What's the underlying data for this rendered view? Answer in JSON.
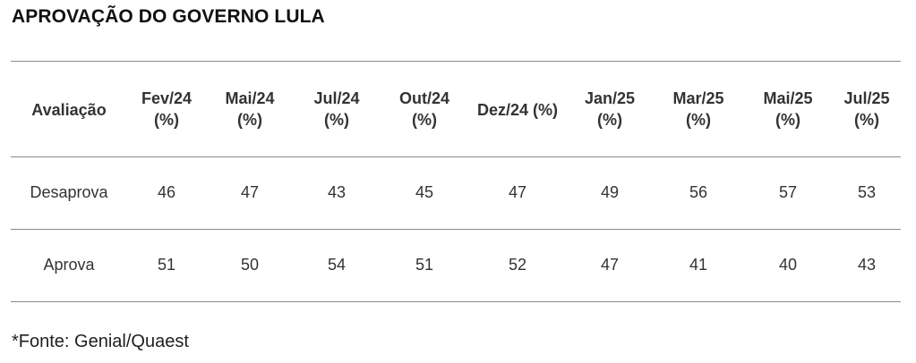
{
  "chart_data": {
    "type": "table",
    "title": "APROVAÇÃO DO GOVERNO LULA",
    "columns": [
      "Avaliação",
      "Fev/24\n(%)",
      "Mai/24\n(%)",
      "Jul/24\n(%)",
      "Out/24\n(%)",
      "Dez/24 (%)",
      "Jan/25\n(%)",
      "Mar/25\n(%)",
      "Mai/25\n(%)",
      "Jul/25\n(%)"
    ],
    "categories": [
      "Fev/24",
      "Mai/24",
      "Jul/24",
      "Out/24",
      "Dez/24",
      "Jan/25",
      "Mar/25",
      "Mai/25",
      "Jul/25"
    ],
    "series": [
      {
        "name": "Desaprova",
        "values": [
          46,
          47,
          43,
          45,
          47,
          49,
          56,
          57,
          53
        ]
      },
      {
        "name": "Aprova",
        "values": [
          51,
          50,
          54,
          51,
          52,
          47,
          41,
          40,
          43
        ]
      }
    ],
    "footnote": "*Fonte: Genial/Quaest"
  }
}
